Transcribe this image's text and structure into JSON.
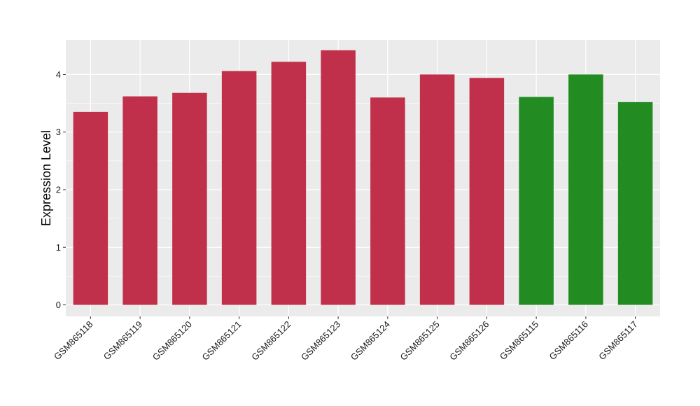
{
  "chart_data": {
    "type": "bar",
    "categories": [
      "GSM865118",
      "GSM865119",
      "GSM865120",
      "GSM865121",
      "GSM865122",
      "GSM865123",
      "GSM865124",
      "GSM865125",
      "GSM865126",
      "GSM865115",
      "GSM865116",
      "GSM865117"
    ],
    "values": [
      3.35,
      3.62,
      3.68,
      4.06,
      4.22,
      4.42,
      3.6,
      4.0,
      3.94,
      3.61,
      4.0,
      3.52
    ],
    "bar_groups": [
      "a",
      "a",
      "a",
      "a",
      "a",
      "a",
      "a",
      "a",
      "a",
      "b",
      "b",
      "b"
    ],
    "group_colors": {
      "a": "#c0304a",
      "b": "#228b22"
    },
    "title": "",
    "xlabel": "",
    "ylabel": "Expression Level",
    "ylim": [
      -0.2,
      4.6
    ],
    "yticks": [
      0,
      1,
      2,
      3,
      4
    ],
    "grid": true,
    "panel_color": "#ebebeb",
    "grid_color": "#ffffff"
  }
}
